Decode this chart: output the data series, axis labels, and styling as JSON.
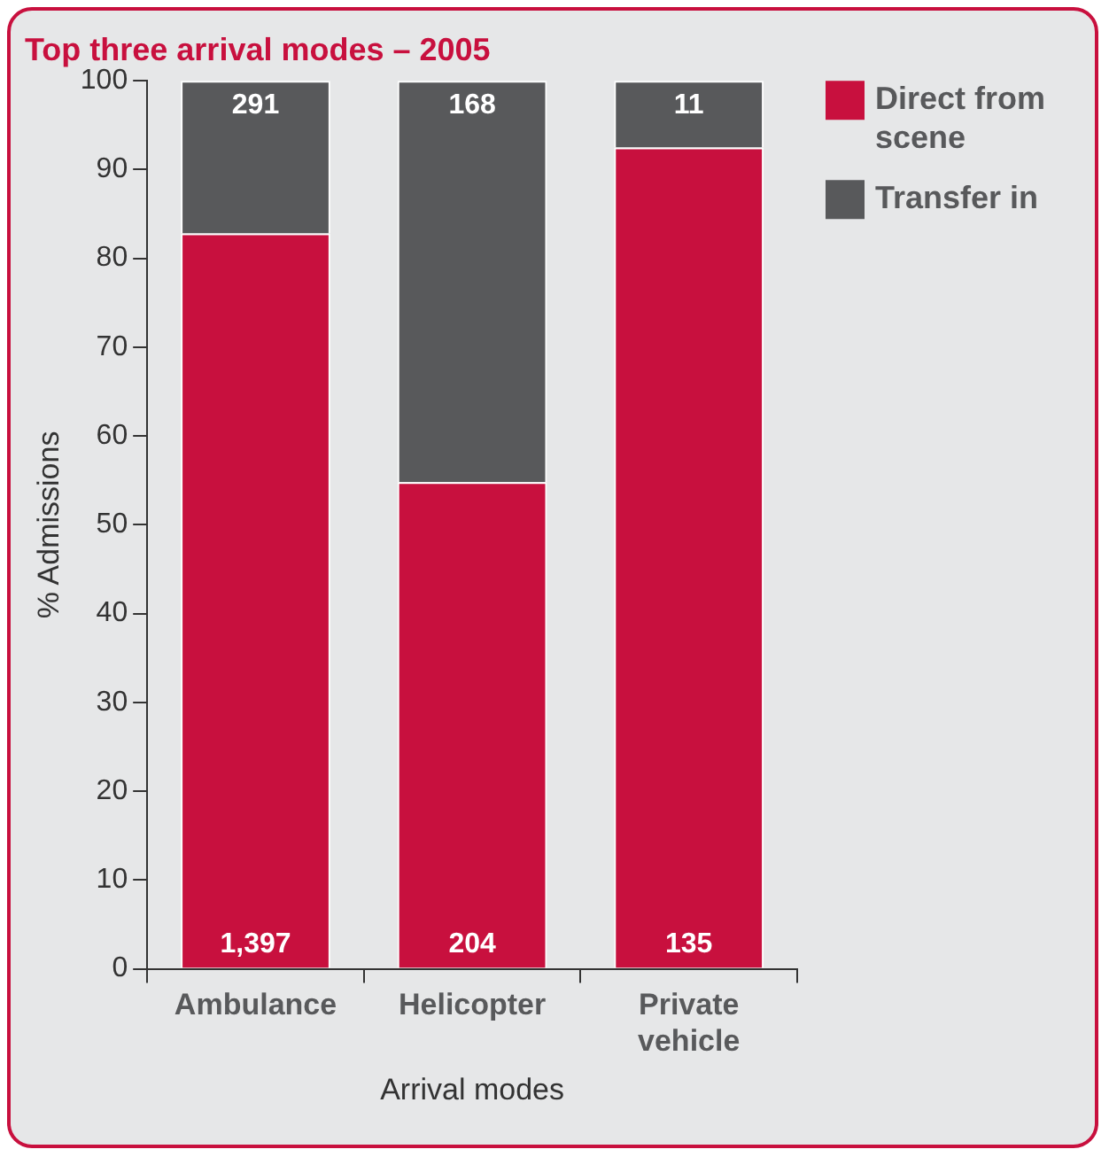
{
  "chart_data": {
    "type": "bar",
    "title": "Top three arrival modes – 2005",
    "xlabel": "Arrival modes",
    "ylabel": "% Admissions",
    "categories": [
      "Ambulance",
      "Helicopter",
      "Private vehicle"
    ],
    "series": [
      {
        "name": "Direct from scene",
        "color": "#c8103e",
        "values": [
          82.8,
          54.8,
          92.5
        ]
      },
      {
        "name": "Transfer in",
        "color": "#58595b",
        "values": [
          17.2,
          45.2,
          7.5
        ]
      }
    ],
    "annotations": [
      "1,397",
      "204",
      "135",
      "291",
      "168",
      "11"
    ],
    "stacked": true,
    "ylim": [
      0,
      100
    ],
    "yticks": [
      0,
      10,
      20,
      30,
      40,
      50,
      60,
      70,
      80,
      90,
      100
    ],
    "grid": false,
    "legend": "top right"
  }
}
